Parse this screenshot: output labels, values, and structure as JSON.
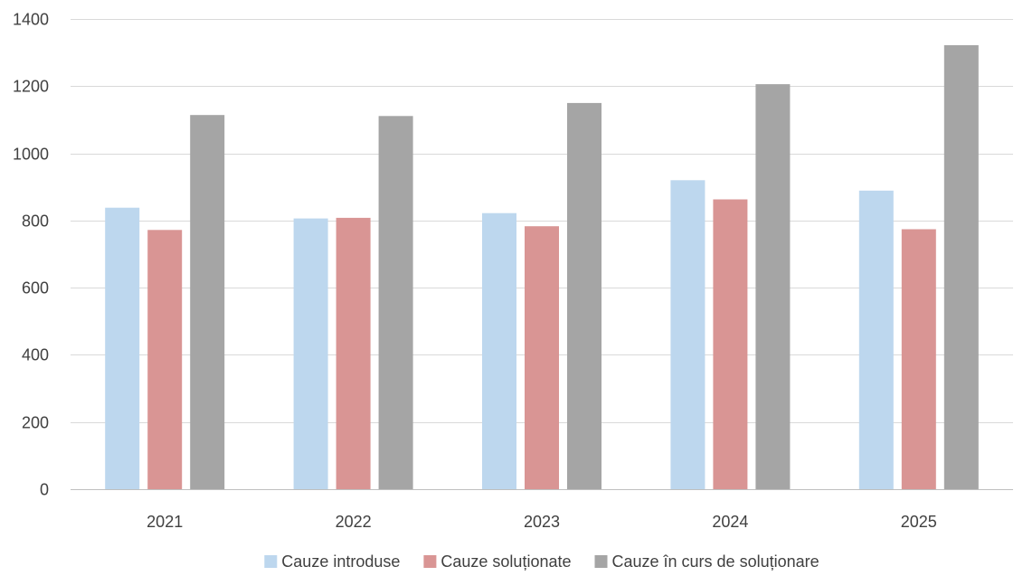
{
  "chart_data": {
    "type": "bar",
    "title": "",
    "xlabel": "",
    "ylabel": "",
    "categories": [
      "2021",
      "2022",
      "2023",
      "2024",
      "2025"
    ],
    "series": [
      {
        "name": "Cauze introduse",
        "color": "#bdd7ee",
        "values": [
          838,
          806,
          822,
          920,
          889
        ]
      },
      {
        "name": "Cauze soluționate",
        "color": "#d99594",
        "values": [
          772,
          808,
          783,
          863,
          774
        ]
      },
      {
        "name": "Cauze în curs de soluționare",
        "color": "#a5a5a5",
        "values": [
          1114,
          1111,
          1150,
          1206,
          1322
        ]
      }
    ],
    "ylim": [
      0,
      1400
    ],
    "yticks": [
      0,
      200,
      400,
      600,
      800,
      1000,
      1200,
      1400
    ],
    "grid": true,
    "legend_position": "bottom"
  }
}
